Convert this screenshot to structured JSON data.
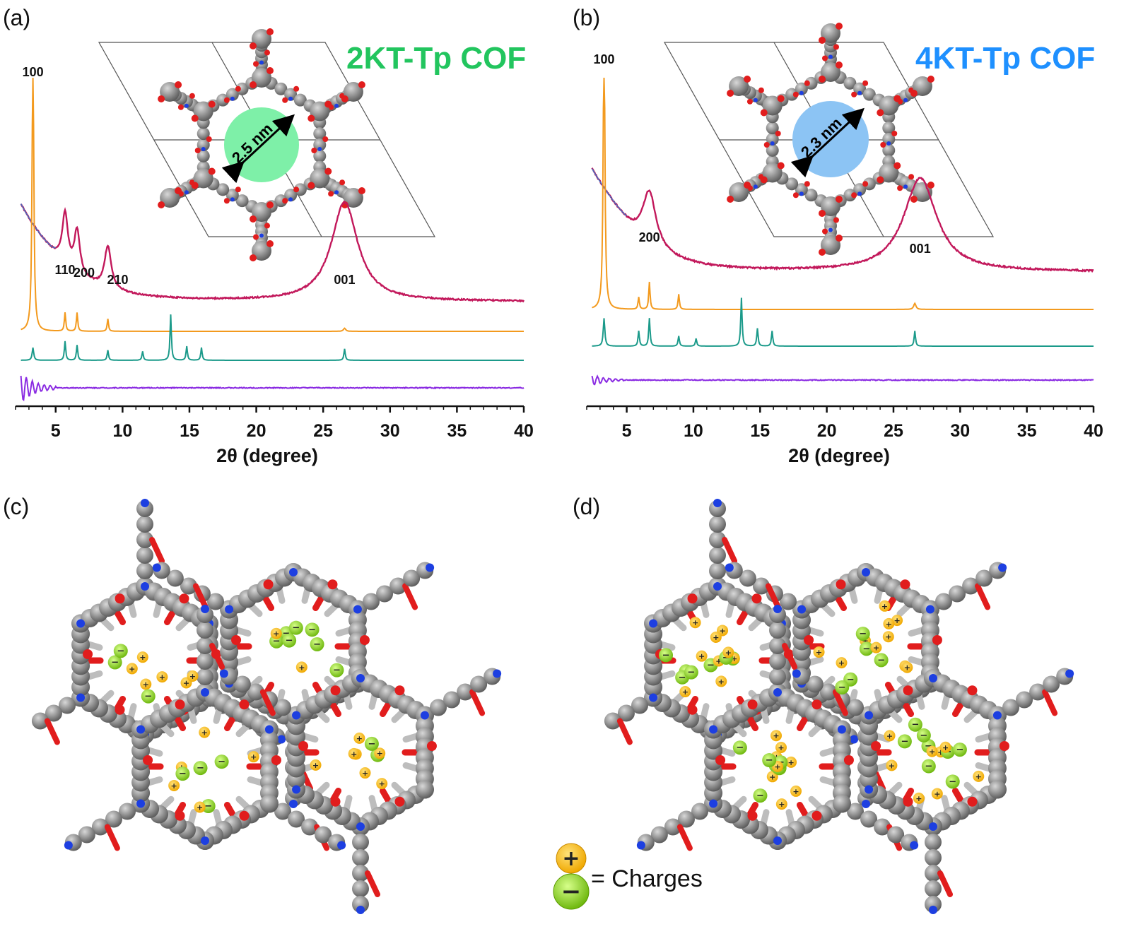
{
  "panels": {
    "a": {
      "label": "(a)",
      "title": "2KT-Tp COF",
      "title_color": "#22c55e",
      "pore_label": "2.5 nm",
      "pore_color": "#7ef0a8"
    },
    "b": {
      "label": "(b)",
      "title": "4KT-Tp COF",
      "title_color": "#1e90ff",
      "pore_label": "2.3 nm",
      "pore_color": "#8cc4f4"
    },
    "c": {
      "label": "(c)"
    },
    "d": {
      "label": "(d)"
    }
  },
  "legend": {
    "text": "= Charges",
    "plus": "+",
    "minus": "−"
  },
  "colors": {
    "experimental": "#c2185b",
    "simulated_aa": "#f39a1e",
    "simulated_ab": "#1b9a8a",
    "difference": "#8a2be2",
    "carbon": "#808080",
    "oxygen": "#e11d1d",
    "nitrogen": "#1d3fe1",
    "cation": "#f5b400",
    "anion": "#8ad21e"
  },
  "chart_data": [
    {
      "type": "line",
      "panel": "a",
      "xlabel": "2θ (degree)",
      "xlim": [
        2,
        40
      ],
      "xticks": [
        5,
        10,
        15,
        20,
        25,
        30,
        35,
        40
      ],
      "annotations": [
        {
          "text": "100",
          "x": 3.3
        },
        {
          "text": "110",
          "x": 5.7
        },
        {
          "text": "200",
          "x": 6.6
        },
        {
          "text": "210",
          "x": 8.9
        },
        {
          "text": "001",
          "x": 26.6
        }
      ],
      "series": [
        {
          "color": "#c2185b",
          "baseline": 0.68,
          "peaks": [
            [
              3.3,
              3.5,
              0.18
            ],
            [
              5.7,
              0.25,
              0.36
            ],
            [
              6.6,
              0.25,
              0.3
            ],
            [
              8.9,
              0.3,
              0.3
            ],
            [
              26.6,
              1.2,
              0.7
            ]
          ]
        },
        {
          "color": "#f39a1e",
          "baseline": 0.0,
          "peaks": [
            [
              3.3,
              0.07,
              1.0
            ],
            [
              5.7,
              0.06,
              0.06
            ],
            [
              6.6,
              0.06,
              0.06
            ],
            [
              8.9,
              0.06,
              0.04
            ],
            [
              26.6,
              0.1,
              0.01
            ]
          ]
        },
        {
          "color": "#1b9a8a",
          "baseline": 0.0,
          "peaks": [
            [
              3.3,
              0.07,
              0.1
            ],
            [
              5.7,
              0.06,
              0.15
            ],
            [
              6.6,
              0.06,
              0.12
            ],
            [
              8.9,
              0.06,
              0.08
            ],
            [
              11.5,
              0.06,
              0.07
            ],
            [
              13.6,
              0.06,
              0.36
            ],
            [
              14.8,
              0.06,
              0.11
            ],
            [
              15.9,
              0.06,
              0.1
            ],
            [
              26.6,
              0.06,
              0.09
            ]
          ]
        },
        {
          "color": "#8a2be2",
          "baseline": 0.0,
          "peaks": []
        }
      ]
    },
    {
      "type": "line",
      "panel": "b",
      "xlabel": "2θ (degree)",
      "xlim": [
        2,
        40
      ],
      "xticks": [
        5,
        10,
        15,
        20,
        25,
        30,
        35,
        40
      ],
      "annotations": [
        {
          "text": "100",
          "x": 3.3
        },
        {
          "text": "200",
          "x": 6.7
        },
        {
          "text": "001",
          "x": 27.0
        }
      ],
      "series": [
        {
          "color": "#c2185b",
          "baseline": 0.62,
          "peaks": [
            [
              3.3,
              3.0,
              0.2
            ],
            [
              6.7,
              0.6,
              0.35
            ],
            [
              27.0,
              1.5,
              0.6
            ]
          ]
        },
        {
          "color": "#f39a1e",
          "baseline": 0.0,
          "peaks": [
            [
              3.3,
              0.07,
              1.0
            ],
            [
              5.9,
              0.06,
              0.04
            ],
            [
              6.7,
              0.06,
              0.09
            ],
            [
              8.9,
              0.06,
              0.05
            ],
            [
              26.6,
              0.1,
              0.02
            ]
          ]
        },
        {
          "color": "#1b9a8a",
          "baseline": 0.0,
          "peaks": [
            [
              3.3,
              0.07,
              0.11
            ],
            [
              5.9,
              0.06,
              0.06
            ],
            [
              6.7,
              0.06,
              0.11
            ],
            [
              8.9,
              0.06,
              0.04
            ],
            [
              10.2,
              0.06,
              0.03
            ],
            [
              13.6,
              0.06,
              0.19
            ],
            [
              14.8,
              0.06,
              0.07
            ],
            [
              15.9,
              0.06,
              0.06
            ],
            [
              26.6,
              0.06,
              0.06
            ]
          ]
        },
        {
          "color": "#8a2be2",
          "baseline": 0.0,
          "peaks": []
        }
      ]
    }
  ]
}
